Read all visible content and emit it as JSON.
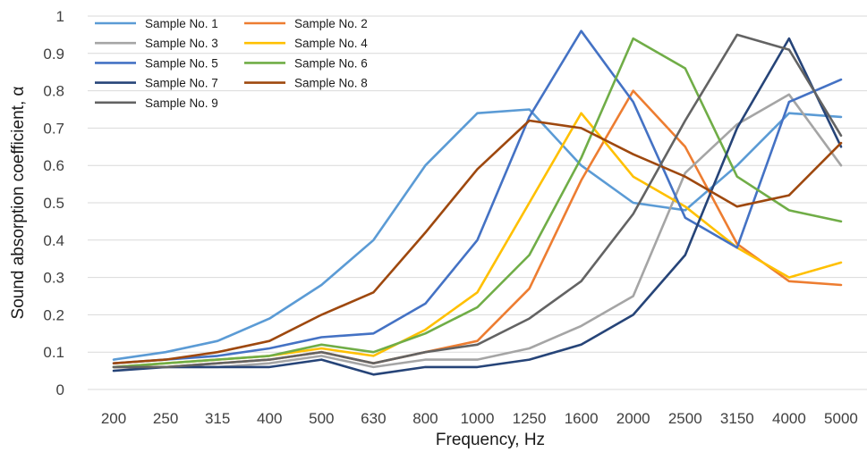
{
  "chart_data": {
    "type": "line",
    "xlabel": "Frequency, Hz",
    "ylabel": "Sound absorption coefficient, α",
    "ylim": [
      0,
      1
    ],
    "yticks": [
      "0",
      "0.1",
      "0.2",
      "0.3",
      "0.4",
      "0.5",
      "0.6",
      "0.7",
      "0.8",
      "0.9",
      "1"
    ],
    "grid": "horizontal",
    "legend": "top-left, two columns",
    "categories": [
      "200",
      "250",
      "315",
      "400",
      "500",
      "630",
      "800",
      "1000",
      "1250",
      "1600",
      "2000",
      "2500",
      "3150",
      "4000",
      "5000"
    ],
    "series": [
      {
        "name": "Sample No. 1",
        "color": "#5B9BD5",
        "values": [
          0.08,
          0.1,
          0.13,
          0.19,
          0.28,
          0.4,
          0.6,
          0.74,
          0.75,
          0.6,
          0.5,
          0.48,
          0.6,
          0.74,
          0.73
        ]
      },
      {
        "name": "Sample No. 2",
        "color": "#ED7D31",
        "values": [
          0.06,
          0.06,
          0.07,
          0.08,
          0.1,
          0.07,
          0.1,
          0.13,
          0.27,
          0.56,
          0.8,
          0.65,
          0.39,
          0.29,
          0.28
        ]
      },
      {
        "name": "Sample No. 3",
        "color": "#A5A5A5",
        "values": [
          0.06,
          0.06,
          0.06,
          0.07,
          0.09,
          0.06,
          0.08,
          0.08,
          0.11,
          0.17,
          0.25,
          0.58,
          0.71,
          0.79,
          0.6
        ]
      },
      {
        "name": "Sample No. 4",
        "color": "#FFC000",
        "values": [
          0.06,
          0.07,
          0.08,
          0.09,
          0.11,
          0.09,
          0.16,
          0.26,
          0.5,
          0.74,
          0.57,
          0.49,
          0.38,
          0.3,
          0.34
        ]
      },
      {
        "name": "Sample No. 5",
        "color": "#4472C4",
        "values": [
          0.07,
          0.08,
          0.09,
          0.11,
          0.14,
          0.15,
          0.23,
          0.4,
          0.73,
          0.96,
          0.77,
          0.46,
          0.38,
          0.77,
          0.83
        ]
      },
      {
        "name": "Sample No. 6",
        "color": "#70AD47",
        "values": [
          0.06,
          0.07,
          0.08,
          0.09,
          0.12,
          0.1,
          0.15,
          0.22,
          0.36,
          0.62,
          0.94,
          0.86,
          0.57,
          0.48,
          0.45
        ]
      },
      {
        "name": "Sample No. 7",
        "color": "#264478",
        "values": [
          0.05,
          0.06,
          0.06,
          0.06,
          0.08,
          0.04,
          0.06,
          0.06,
          0.08,
          0.12,
          0.2,
          0.36,
          0.7,
          0.94,
          0.65
        ]
      },
      {
        "name": "Sample No. 8",
        "color": "#9E480E",
        "values": [
          0.07,
          0.08,
          0.1,
          0.13,
          0.2,
          0.26,
          0.42,
          0.59,
          0.72,
          0.7,
          0.63,
          0.57,
          0.49,
          0.52,
          0.66
        ]
      },
      {
        "name": "Sample No. 9",
        "color": "#636363",
        "values": [
          0.06,
          0.06,
          0.07,
          0.08,
          0.1,
          0.07,
          0.1,
          0.12,
          0.19,
          0.29,
          0.47,
          0.72,
          0.95,
          0.91,
          0.68
        ]
      }
    ]
  }
}
